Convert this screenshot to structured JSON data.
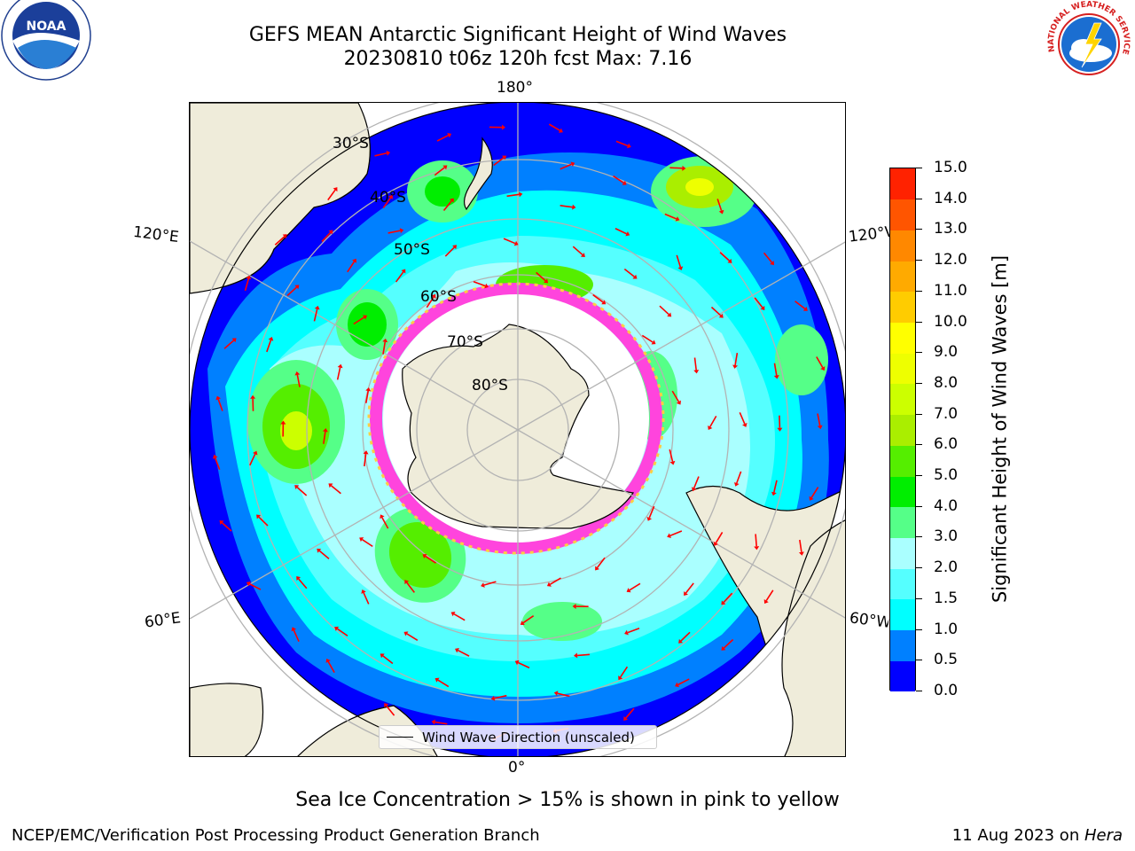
{
  "title": {
    "line1": "GEFS MEAN Antarctic Significant Height of Wind Waves",
    "line2": "20230810 t06z 120h fcst   Max: 7.16"
  },
  "logos": {
    "left": {
      "name": "noaa-logo",
      "text": "NOAA",
      "ring_text": "NATIONAL OCEANIC AND ATMOSPHERIC ADMINISTRATION · U.S. DEPARTMENT OF COMMERCE"
    },
    "right": {
      "name": "nws-logo",
      "ring_text": "NATIONAL WEATHER SERVICE"
    }
  },
  "map": {
    "projection": "south-polar-stereographic",
    "longitude_labels": {
      "top": "180°",
      "bottom": "0°",
      "left_upper": "120°E",
      "left_lower": "60°E",
      "right_upper": "120°W",
      "right_lower": "60°W"
    },
    "latitude_labels": [
      "30°S",
      "40°S",
      "50°S",
      "60°S",
      "70°S",
      "80°S"
    ],
    "legend": "Wind Wave Direction (unscaled)",
    "colors": {
      "land": "#efecda",
      "ocean_deep_blue": "#0000ff",
      "ice_pink": "#ff44dd",
      "ice_yellow": "#ffcc44",
      "arrow": "#ff0000",
      "grid": "#b3b3b3"
    }
  },
  "colorbar": {
    "title": "Significant Height of Wind Waves [m]",
    "ticks": [
      "0.0",
      "0.5",
      "1.0",
      "1.5",
      "2.0",
      "3.0",
      "4.0",
      "5.0",
      "6.0",
      "7.0",
      "8.0",
      "9.0",
      "10.0",
      "11.0",
      "12.0",
      "13.0",
      "14.0",
      "15.0"
    ],
    "colors": [
      "#0000ff",
      "#0080ff",
      "#00ffff",
      "#55ffff",
      "#aaffff",
      "#55ff88",
      "#00ee00",
      "#55ee00",
      "#aaee00",
      "#ccff00",
      "#eeff00",
      "#ffff00",
      "#ffcc00",
      "#ffaa00",
      "#ff8800",
      "#ff5500",
      "#ff2200"
    ]
  },
  "subcaption": "Sea Ice Concentration > 15% is shown in pink to yellow",
  "footer": {
    "left": "NCEP/EMC/Verification Post Processing Product Generation Branch",
    "right_date": "11 Aug 2023 on ",
    "right_host": "Hera"
  }
}
